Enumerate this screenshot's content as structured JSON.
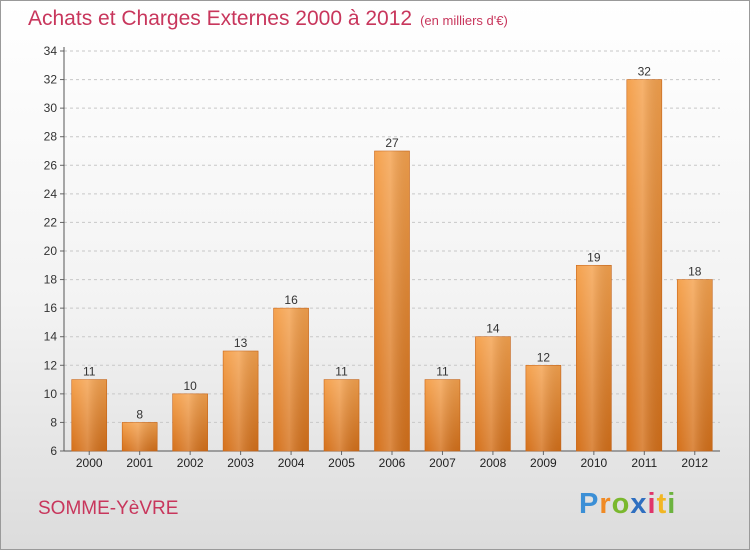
{
  "header": {
    "title": "Achats et Charges Externes 2000 à 2012",
    "unit": "(en milliers d'€)"
  },
  "footer": {
    "city": "SOMME-YèVRE",
    "brand_letters": [
      {
        "ch": "P",
        "color": "#3b8fd6"
      },
      {
        "ch": "r",
        "color": "#f08a24"
      },
      {
        "ch": "o",
        "color": "#7ab82e"
      },
      {
        "ch": "x",
        "color": "#2f6fc0"
      },
      {
        "ch": "i",
        "color": "#e0356b"
      },
      {
        "ch": "t",
        "color": "#f2b623"
      },
      {
        "ch": "i",
        "color": "#6cb33f"
      }
    ]
  },
  "chart_data": {
    "type": "bar",
    "categories": [
      "2000",
      "2001",
      "2002",
      "2003",
      "2004",
      "2005",
      "2006",
      "2007",
      "2008",
      "2009",
      "2010",
      "2011",
      "2012"
    ],
    "values": [
      11,
      8,
      10,
      13,
      16,
      11,
      27,
      11,
      14,
      12,
      19,
      32,
      18
    ],
    "title": "Achats et Charges Externes 2000 à 2012",
    "xlabel": "",
    "ylabel": "",
    "ylim": [
      6,
      34
    ],
    "ytick_step": 2,
    "grid": true,
    "bar_color_top": "#f5a24e",
    "bar_color_bottom": "#d4701a"
  }
}
